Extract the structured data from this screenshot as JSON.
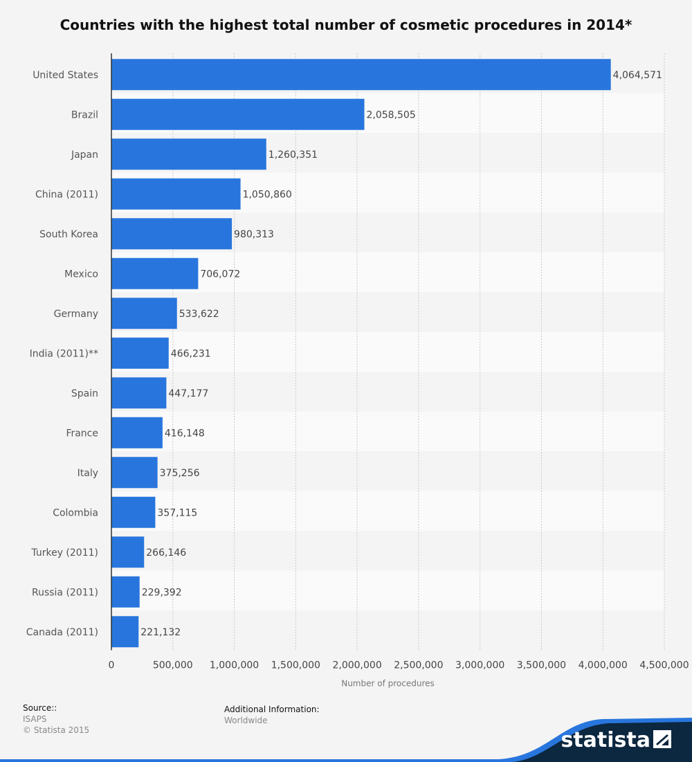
{
  "chart_data": {
    "type": "bar",
    "orientation": "horizontal",
    "title": "Countries with the highest total number of cosmetic procedures in 2014*",
    "xlabel": "Number of procedures",
    "ylabel": "",
    "xlim": [
      0,
      4500000
    ],
    "xticks": [
      "0",
      "500,000",
      "1,000,000",
      "1,500,000",
      "2,000,000",
      "2,500,000",
      "3,000,000",
      "3,500,000",
      "4,000,000",
      "4,500,000"
    ],
    "grid": true,
    "bar_color": "#2876dd",
    "categories": [
      "United States",
      "Brazil",
      "Japan",
      "China (2011)",
      "South Korea",
      "Mexico",
      "Germany",
      "India (2011)**",
      "Spain",
      "France",
      "Italy",
      "Colombia",
      "Turkey (2011)",
      "Russia (2011)",
      "Canada (2011)"
    ],
    "values": [
      4064571,
      2058505,
      1260351,
      1050860,
      980313,
      706072,
      533622,
      466231,
      447177,
      416148,
      375256,
      357115,
      266146,
      229392,
      221132
    ],
    "value_labels": [
      "4,064,571",
      "2,058,505",
      "1,260,351",
      "1,050,860",
      "980,313",
      "706,072",
      "533,622",
      "466,231",
      "447,177",
      "416,148",
      "375,256",
      "357,115",
      "266,146",
      "229,392",
      "221,132"
    ]
  },
  "footer": {
    "source_heading": "Source::",
    "source_lines": [
      "ISAPS",
      "© Statista 2015"
    ],
    "additional_heading": "Additional Information:",
    "additional_lines": [
      "Worldwide"
    ]
  },
  "brand": {
    "name": "statista",
    "logo_icon": "statista-logo-icon",
    "band_color": "#0c2740",
    "accent_color": "#2876dd"
  }
}
